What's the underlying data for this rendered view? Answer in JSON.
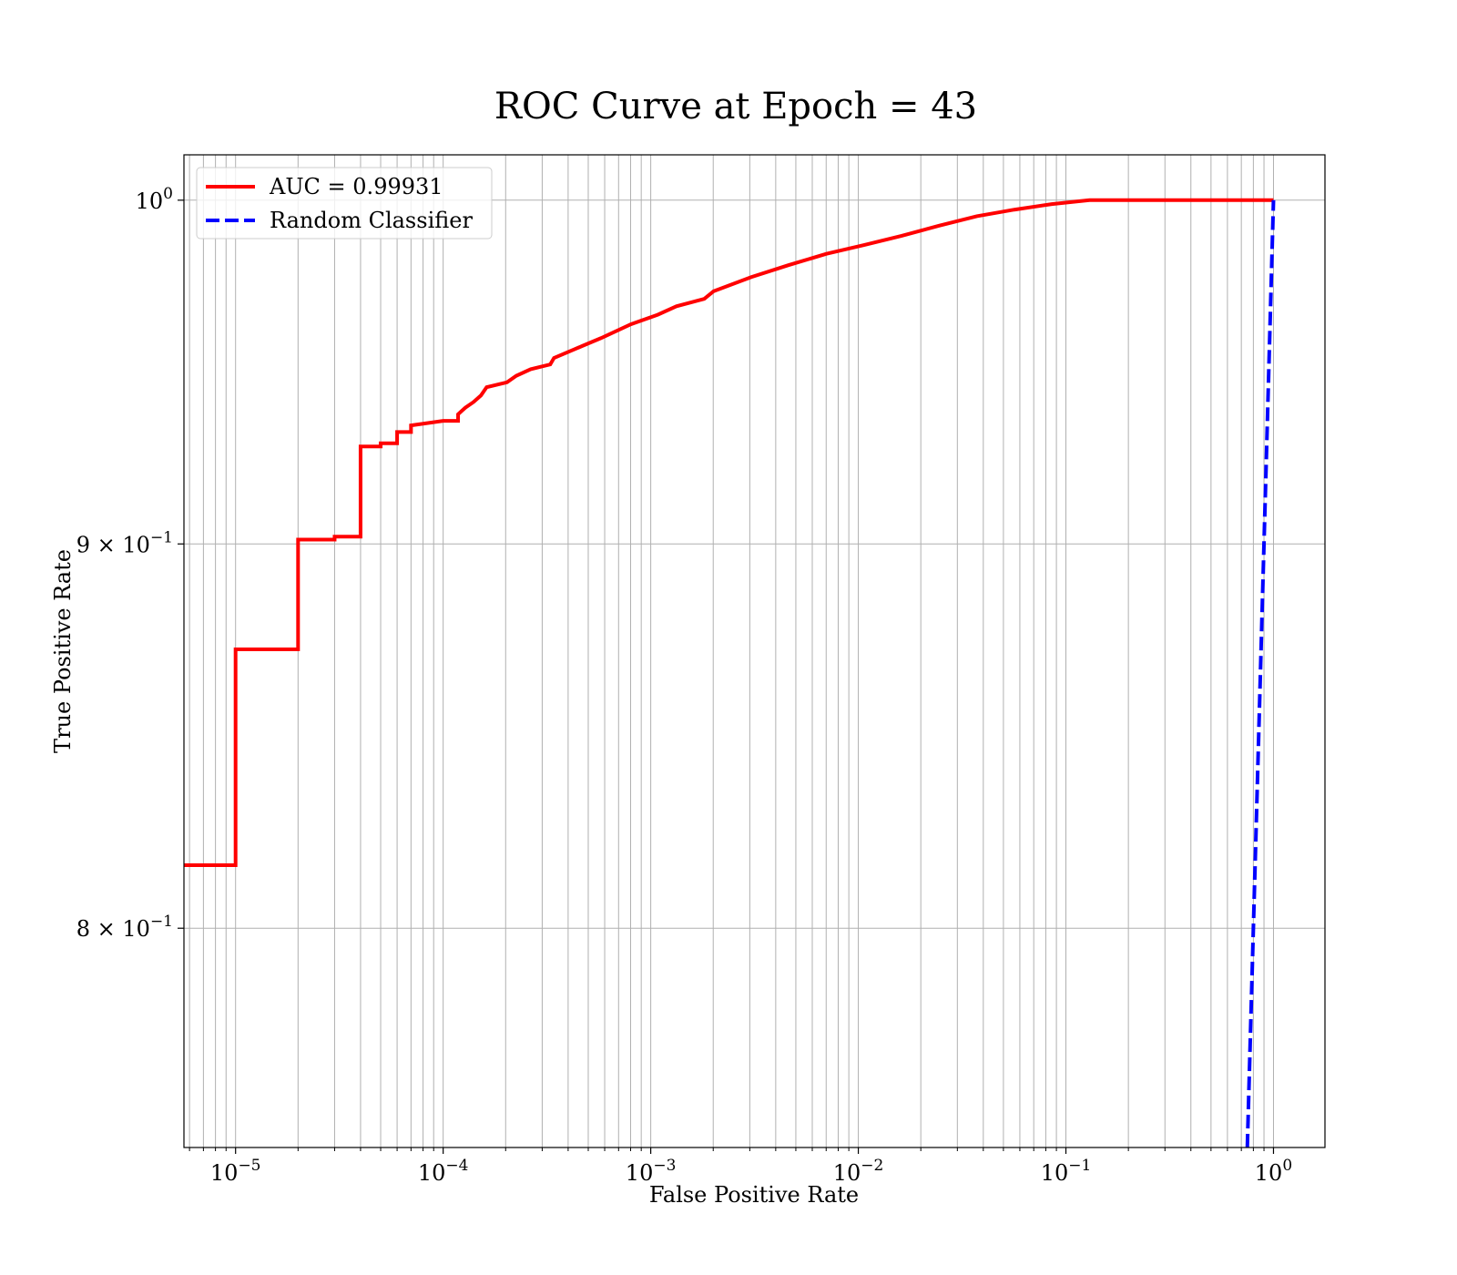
{
  "chart_data": {
    "type": "line",
    "title": "ROC Curve at Epoch = 43",
    "xlabel": "False Positive Rate",
    "ylabel": "True Positive Rate",
    "xscale": "log",
    "yscale": "log",
    "xlim": [
      5.64e-06,
      1.77
    ],
    "ylim": [
      0.748,
      1.014
    ],
    "xticks": [
      {
        "value": 1e-05,
        "label": "10",
        "sup": "−5"
      },
      {
        "value": 0.0001,
        "label": "10",
        "sup": "−4"
      },
      {
        "value": 0.001,
        "label": "10",
        "sup": "−3"
      },
      {
        "value": 0.01,
        "label": "10",
        "sup": "−2"
      },
      {
        "value": 0.1,
        "label": "10",
        "sup": "−1"
      },
      {
        "value": 1,
        "label": "10",
        "sup": "0"
      }
    ],
    "xminorticks": [
      6e-06,
      7e-06,
      8e-06,
      9e-06,
      2e-05,
      3e-05,
      4e-05,
      5e-05,
      6e-05,
      7e-05,
      8e-05,
      9e-05,
      0.0002,
      0.0003,
      0.0004,
      0.0005,
      0.0006,
      0.0007,
      0.0008,
      0.0009,
      0.002,
      0.003,
      0.004,
      0.005,
      0.006,
      0.007,
      0.008,
      0.009,
      0.02,
      0.03,
      0.04,
      0.05,
      0.06,
      0.07,
      0.08,
      0.09,
      0.2,
      0.3,
      0.4,
      0.5,
      0.6,
      0.7,
      0.8,
      0.9
    ],
    "yticks": [
      {
        "value": 0.8,
        "label": "8 × 10",
        "sup": "−1"
      },
      {
        "value": 0.9,
        "label": "9 × 10",
        "sup": "−1"
      },
      {
        "value": 1,
        "label": "10",
        "sup": "0"
      }
    ],
    "grid": true,
    "legend": "upper left",
    "series": [
      {
        "name": "AUC = 0.99931",
        "color": "#ff0000",
        "linestyle": "solid",
        "x": [
          5.64e-06,
          1e-05,
          1e-05,
          2e-05,
          2e-05,
          3e-05,
          3e-05,
          4e-05,
          4e-05,
          5e-05,
          5e-05,
          6e-05,
          6e-05,
          7e-05,
          7e-05,
          0.0001,
          0.000118,
          0.000118,
          0.000128,
          0.00014,
          0.000152,
          0.000162,
          0.000203,
          0.000225,
          0.000264,
          0.000328,
          0.000342,
          0.000468,
          0.000576,
          0.000804,
          0.00108,
          0.00133,
          0.00181,
          0.00201,
          0.00305,
          0.00462,
          0.00702,
          0.0106,
          0.0161,
          0.0245,
          0.0372,
          0.0564,
          0.0855,
          0.13,
          1
        ],
        "values": [
          0.8156,
          0.8156,
          0.8714,
          0.8714,
          0.9012,
          0.9012,
          0.902,
          0.902,
          0.9273,
          0.9273,
          0.9282,
          0.9282,
          0.9314,
          0.9314,
          0.9333,
          0.9346,
          0.9346,
          0.9365,
          0.9384,
          0.94,
          0.9419,
          0.9443,
          0.9457,
          0.9476,
          0.9495,
          0.9509,
          0.9528,
          0.9563,
          0.9586,
          0.9627,
          0.9655,
          0.968,
          0.9702,
          0.9725,
          0.9767,
          0.9803,
          0.9837,
          0.9863,
          0.9891,
          0.9922,
          0.9951,
          0.9971,
          0.9988,
          1,
          1
        ]
      },
      {
        "name": "Random Classifier",
        "color": "#0000ff",
        "linestyle": "dashed",
        "x": [
          0.748,
          1
        ],
        "values": [
          0.748,
          1
        ]
      }
    ]
  }
}
